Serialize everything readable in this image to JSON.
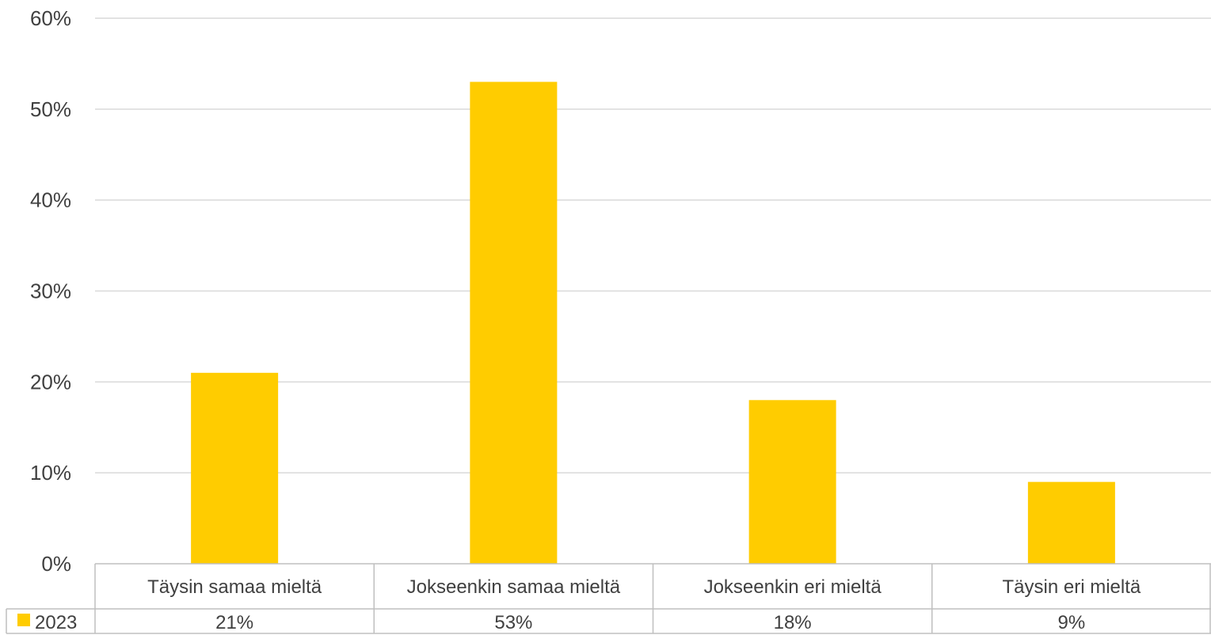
{
  "chart_data": {
    "type": "bar",
    "categories": [
      "Täysin samaa mieltä",
      "Jokseenkin samaa mieltä",
      "Jokseenkin eri mieltä",
      "Täysin eri mieltä"
    ],
    "series": [
      {
        "name": "2023",
        "values": [
          21,
          53,
          18,
          9
        ],
        "value_labels": [
          "21%",
          "53%",
          "18%",
          "9%"
        ],
        "color": "#FFCC00"
      }
    ],
    "title": "",
    "xlabel": "",
    "ylabel": "",
    "ylim": [
      0,
      60
    ],
    "yticks": [
      0,
      10,
      20,
      30,
      40,
      50,
      60
    ],
    "ytick_labels": [
      "0%",
      "10%",
      "20%",
      "30%",
      "40%",
      "50%",
      "60%"
    ],
    "grid": true,
    "legend": "data-table-left",
    "data_table": true
  }
}
